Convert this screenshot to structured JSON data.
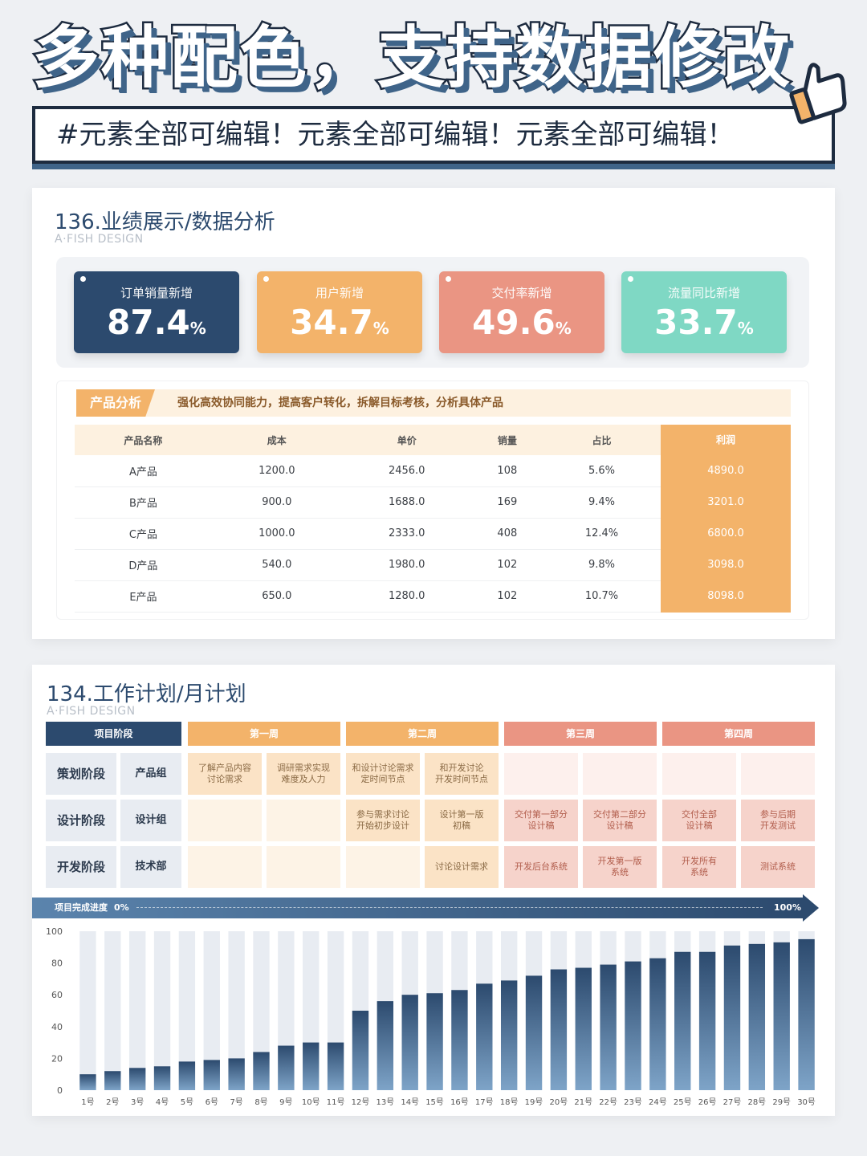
{
  "header": {
    "title": "多种配色，支持数据修改",
    "banner": "#元素全部可编辑！元素全部可编辑！元素全部可编辑！"
  },
  "card1": {
    "title": "136.业绩展示/数据分析",
    "subtitle": "A·FISH DESIGN",
    "kpis": [
      {
        "label": "订单销量新增",
        "value": "87.4",
        "unit": "%",
        "color": "#2c4a6e"
      },
      {
        "label": "用户新增",
        "value": "34.7",
        "unit": "%",
        "color": "#f3b36a"
      },
      {
        "label": "交付率新增",
        "value": "49.6",
        "unit": "%",
        "color": "#ea9583"
      },
      {
        "label": "流量同比新增",
        "value": "33.7",
        "unit": "%",
        "color": "#7fd8c4"
      }
    ],
    "product": {
      "tag": "产品分析",
      "desc": "强化高效协同能力，提高客户转化，拆解目标考核，分析具体产品",
      "columns": [
        "产品名称",
        "成本",
        "单价",
        "销量",
        "占比",
        "利润"
      ],
      "rows": [
        [
          "A产品",
          "1200.0",
          "2456.0",
          "108",
          "5.6%",
          "4890.0"
        ],
        [
          "B产品",
          "900.0",
          "1688.0",
          "169",
          "9.4%",
          "3201.0"
        ],
        [
          "C产品",
          "1000.0",
          "2333.0",
          "408",
          "12.4%",
          "6800.0"
        ],
        [
          "D产品",
          "540.0",
          "1980.0",
          "102",
          "9.8%",
          "3098.0"
        ],
        [
          "E产品",
          "650.0",
          "1280.0",
          "102",
          "10.7%",
          "8098.0"
        ]
      ]
    }
  },
  "card2": {
    "title": "134.工作计划/月计划",
    "subtitle": "A·FISH DESIGN",
    "phase_header": "项目阶段",
    "weeks": [
      {
        "label": "第一周",
        "color": "#f3b36a"
      },
      {
        "label": "第二周",
        "color": "#f3b36a"
      },
      {
        "label": "第三周",
        "color": "#ea9583"
      },
      {
        "label": "第四周",
        "color": "#ea9583"
      }
    ],
    "phases": [
      {
        "phase": "策划阶段",
        "team": "产品组",
        "tasks": [
          "了解产品内容\n讨论需求",
          "调研需求实现\n难度及人力",
          "和设计讨论需求\n定时间节点",
          "和开发讨论\n开发时间节点",
          "",
          "",
          "",
          ""
        ]
      },
      {
        "phase": "设计阶段",
        "team": "设计组",
        "tasks": [
          "",
          "",
          "参与需求讨论\n开始初步设计",
          "设计第一版\n初稿",
          "交付第一部分\n设计稿",
          "交付第二部分\n设计稿",
          "交付全部\n设计稿",
          "参与后期\n开发测试"
        ]
      },
      {
        "phase": "开发阶段",
        "team": "技术部",
        "tasks": [
          "",
          "",
          "",
          "讨论设计需求",
          "开发后台系统",
          "开发第一版\n系统",
          "开发所有\n系统",
          "测试系统"
        ]
      }
    ],
    "progress": {
      "label": "项目完成进度",
      "start": "0%",
      "end": "100%"
    }
  },
  "chart_data": {
    "type": "bar",
    "categories": [
      "1号",
      "2号",
      "3号",
      "4号",
      "5号",
      "6号",
      "7号",
      "8号",
      "9号",
      "10号",
      "11号",
      "12号",
      "13号",
      "14号",
      "15号",
      "16号",
      "17号",
      "18号",
      "19号",
      "20号",
      "21号",
      "22号",
      "23号",
      "24号",
      "25号",
      "26号",
      "27号",
      "28号",
      "29号",
      "30号"
    ],
    "values": [
      10,
      12,
      14,
      15,
      18,
      19,
      20,
      24,
      28,
      30,
      30,
      50,
      56,
      60,
      61,
      63,
      67,
      69,
      72,
      76,
      77,
      79,
      81,
      83,
      87,
      87,
      91,
      92,
      93,
      95
    ],
    "ylim": [
      0,
      100
    ],
    "yticks": [
      0,
      20,
      40,
      60,
      80,
      100
    ],
    "background_bar": 100,
    "grid": false,
    "bar_color": "#2c4a6e",
    "track_color": "#e8ecf2"
  }
}
